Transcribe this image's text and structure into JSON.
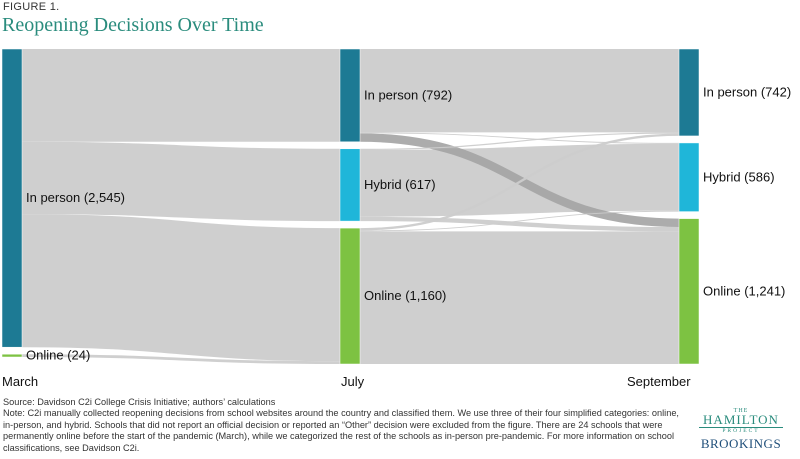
{
  "figure_label": "FIGURE 1.",
  "chart_data": {
    "type": "sankey",
    "title": "Reopening Decisions Over Time",
    "stages": [
      "March",
      "July",
      "September"
    ],
    "nodes": [
      {
        "id": "m_inperson",
        "stage": 0,
        "label": "In person (2,545)",
        "value": 2545,
        "color": "#1d7a94"
      },
      {
        "id": "m_online",
        "stage": 0,
        "label": "Online (24)",
        "value": 24,
        "color": "#7dc242"
      },
      {
        "id": "j_inperson",
        "stage": 1,
        "label": "In person (792)",
        "value": 792,
        "color": "#1d7a94"
      },
      {
        "id": "j_hybrid",
        "stage": 1,
        "label": "Hybrid (617)",
        "value": 617,
        "color": "#1fb6d9"
      },
      {
        "id": "j_online",
        "stage": 1,
        "label": "Online (1,160)",
        "value": 1160,
        "color": "#7dc242"
      },
      {
        "id": "s_inperson",
        "stage": 2,
        "label": "In person (742)",
        "value": 742,
        "color": "#1d7a94"
      },
      {
        "id": "s_hybrid",
        "stage": 2,
        "label": "Hybrid (586)",
        "value": 586,
        "color": "#1fb6d9"
      },
      {
        "id": "s_online",
        "stage": 2,
        "label": "Online (1,241)",
        "value": 1241,
        "color": "#7dc242"
      }
    ],
    "links": [
      {
        "source": "m_inperson",
        "target": "j_inperson",
        "value": 792
      },
      {
        "source": "m_inperson",
        "target": "j_hybrid",
        "value": 617
      },
      {
        "source": "m_inperson",
        "target": "j_online",
        "value": 1136
      },
      {
        "source": "m_online",
        "target": "j_online",
        "value": 24
      },
      {
        "source": "j_inperson",
        "target": "s_inperson",
        "value": 712
      },
      {
        "source": "j_inperson",
        "target": "s_hybrid",
        "value": 8
      },
      {
        "source": "j_inperson",
        "target": "s_online",
        "value": 72
      },
      {
        "source": "j_hybrid",
        "target": "s_inperson",
        "value": 10
      },
      {
        "source": "j_hybrid",
        "target": "s_hybrid",
        "value": 570
      },
      {
        "source": "j_hybrid",
        "target": "s_online",
        "value": 37
      },
      {
        "source": "j_online",
        "target": "s_inperson",
        "value": 20
      },
      {
        "source": "j_online",
        "target": "s_hybrid",
        "value": 8
      },
      {
        "source": "j_online",
        "target": "s_online",
        "value": 1132
      }
    ],
    "link_color": "#cccccc",
    "highlight_link_color": "#a3a3a3"
  },
  "footer": {
    "source": "Source: Davidson C2i College Crisis Initiative; authors’ calculations",
    "note": "Note: C2i manually collected reopening decisions from school websites around the country and classified them. We use three of their four simplified categories: online, in-person, and hybrid. Schools that did not report an official decision or reported an “Other” decision were excluded from the figure. There are 24 schools that were permanently online before the start of the pandemic (March), while we categorized the rest of the schools as in-person pre-pandemic. For more information on school classifications, see Davidson C2i."
  },
  "logo": {
    "the": "THE",
    "hamilton": "HAMILTON",
    "project": "PROJECT",
    "brookings": "BROOKINGS"
  }
}
